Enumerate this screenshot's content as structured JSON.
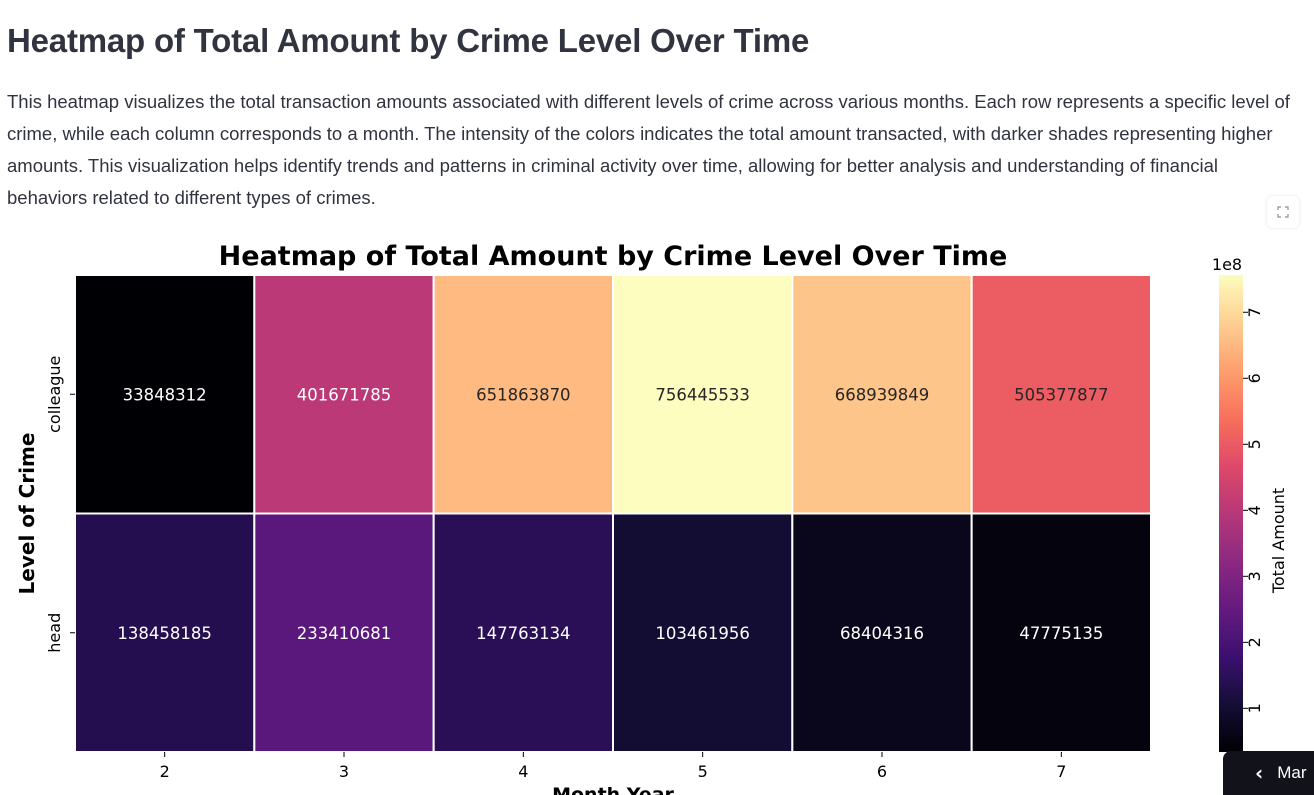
{
  "page": {
    "title": "Heatmap of Total Amount by Crime Level Over Time",
    "description": "This heatmap visualizes the total transaction amounts associated with different levels of crime across various months. Each row represents a specific level of crime, while each column corresponds to a month. The intensity of the colors indicates the total amount transacted, with darker shades representing higher amounts. This visualization helps identify trends and patterns in criminal activity over time, allowing for better analysis and understanding of financial behaviors related to different types of crimes.",
    "fullscreen_icon": "expand-icon",
    "side_tab": {
      "icon": "chevron-left-icon",
      "label": "Mar"
    }
  },
  "chart_data": {
    "type": "heatmap",
    "title": "Heatmap of Total Amount by Crime Level Over Time",
    "xlabel": "Month Year",
    "ylabel": "Level of Crime",
    "colorbar_label": "Total Amount",
    "colorbar_multiplier": "1e8",
    "colorbar_ticks": [
      1,
      2,
      3,
      4,
      5,
      6,
      7
    ],
    "colormap": "magma",
    "vmin": 33848312,
    "vmax": 756445533,
    "x_categories": [
      "2",
      "3",
      "4",
      "5",
      "6",
      "7"
    ],
    "y_categories": [
      "colleague",
      "head"
    ],
    "values": [
      [
        33848312,
        401671785,
        651863870,
        756445533,
        668939849,
        505377877
      ],
      [
        138458185,
        233410681,
        147763134,
        103461956,
        68404316,
        47775135
      ]
    ],
    "annotate": true
  }
}
